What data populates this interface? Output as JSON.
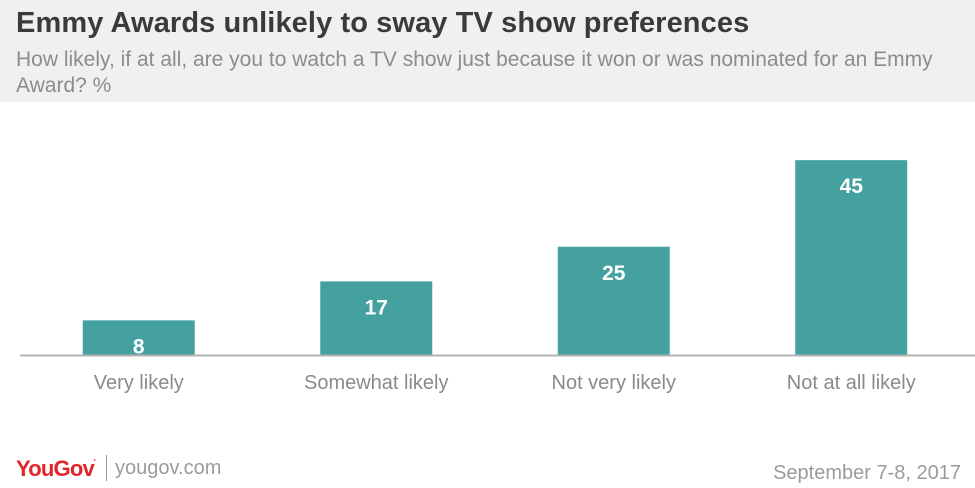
{
  "header": {
    "title": "Emmy Awards unlikely to sway TV show preferences",
    "subtitle": "How likely, if at all, are you to watch a TV show just because it won or was nominated for an Emmy Award? %"
  },
  "chart_data": {
    "type": "bar",
    "categories": [
      "Very likely",
      "Somewhat likely",
      "Not very likely",
      "Not at all likely"
    ],
    "values": [
      8,
      17,
      25,
      45
    ],
    "ylim": [
      0,
      50
    ],
    "grid": false,
    "bar_color": "#45a0a0",
    "label_color": "#ffffff"
  },
  "footer": {
    "brand": "YouGov",
    "brand_mark": "'",
    "url": "yougov.com",
    "date": "September 7-8, 2017",
    "brand_color": "#e0262a"
  }
}
